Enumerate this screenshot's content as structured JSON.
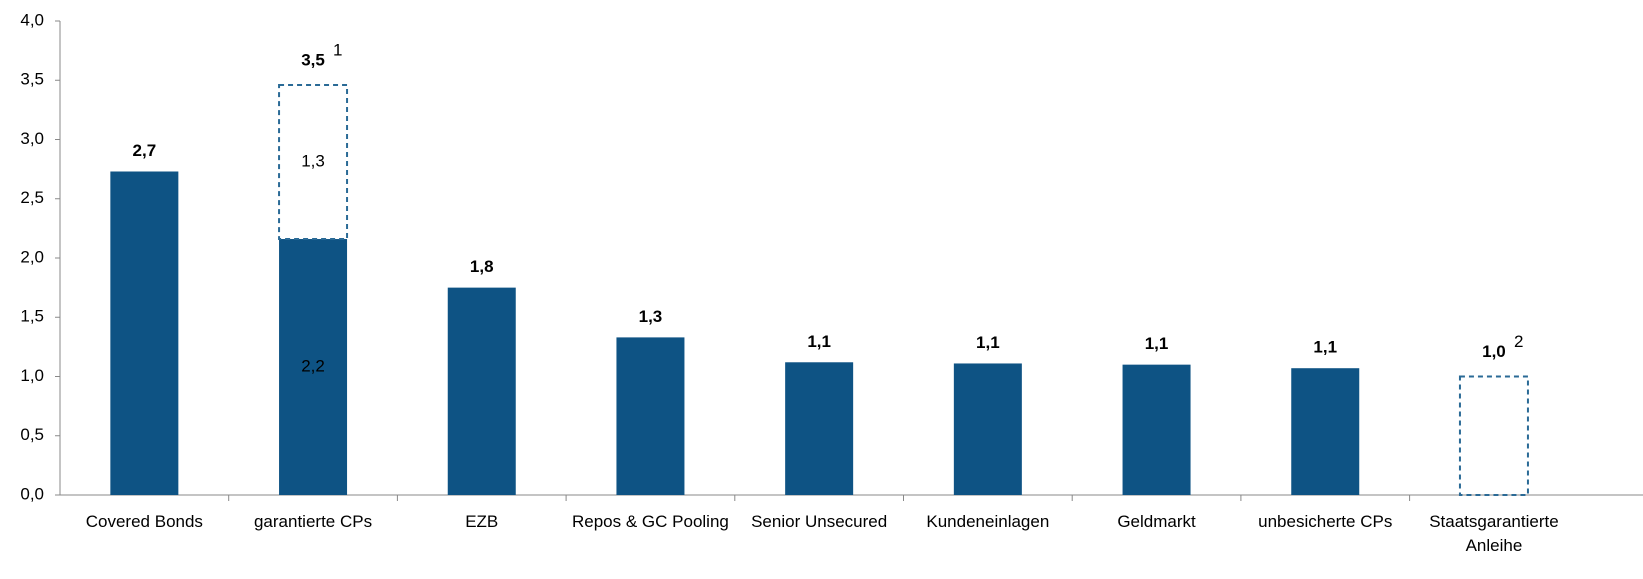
{
  "chart_data": {
    "type": "bar",
    "stacked": true,
    "categories": [
      "Covered Bonds",
      "garantierte CPs",
      "EZB",
      "Repos & GC Pooling",
      "Senior Unsecured",
      "Kundeneinlagen",
      "Geldmarkt",
      "unbesicherte CPs",
      "Staatsgarantierte Anleihe"
    ],
    "series": [
      {
        "color": "#0e5384",
        "style": "solid",
        "values": [
          2.73,
          2.16,
          1.75,
          1.33,
          1.12,
          1.11,
          1.1,
          1.07,
          null
        ],
        "value_labels": [
          "2,7",
          "2,2",
          "1,8",
          "1,3",
          "1,1",
          "1,1",
          "1,1",
          "1,1",
          null
        ]
      },
      {
        "color": "#2a6a96",
        "style": "dashed",
        "values": [
          null,
          1.3,
          null,
          null,
          null,
          null,
          null,
          null,
          1.0
        ],
        "value_labels": [
          null,
          "1,3",
          null,
          null,
          null,
          null,
          null,
          null,
          null
        ]
      }
    ],
    "total_labels": [
      null,
      "3,5",
      null,
      null,
      null,
      null,
      null,
      null,
      "1,0"
    ],
    "footnotes": [
      null,
      "1",
      null,
      null,
      null,
      null,
      null,
      null,
      "2"
    ],
    "ylim": [
      0,
      4
    ],
    "yticks": [
      {
        "value": 0,
        "label": "0,0"
      },
      {
        "value": 0.5,
        "label": "0,5"
      },
      {
        "value": 1,
        "label": "1,0"
      },
      {
        "value": 1.5,
        "label": "1,5"
      },
      {
        "value": 2,
        "label": "2,0"
      },
      {
        "value": 2.5,
        "label": "2,5"
      },
      {
        "value": 3,
        "label": "3,0"
      },
      {
        "value": 3.5,
        "label": "3,5"
      },
      {
        "value": 4,
        "label": "4,0"
      }
    ],
    "grid": false
  }
}
